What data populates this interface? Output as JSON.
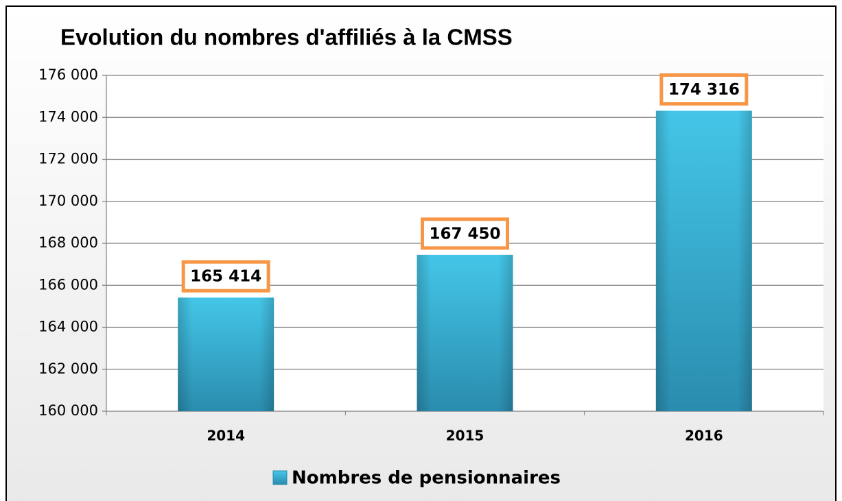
{
  "chart_data": {
    "type": "bar",
    "title": "Evolution du nombres d'affiliés à la CMSS",
    "categories": [
      "2014",
      "2015",
      "2016"
    ],
    "series": [
      {
        "name": "Nombres de pensionnaires",
        "color": "#3bbde0",
        "values": [
          165414,
          167450,
          174316
        ],
        "value_labels": [
          "165 414",
          "167 450",
          "174 316"
        ]
      }
    ],
    "ylim": [
      160000,
      176000
    ],
    "yticks": [
      {
        "value": 160000,
        "label": "160 000"
      },
      {
        "value": 162000,
        "label": "162 000"
      },
      {
        "value": 164000,
        "label": "164 000"
      },
      {
        "value": 166000,
        "label": "166 000"
      },
      {
        "value": 168000,
        "label": "168 000"
      },
      {
        "value": 170000,
        "label": "170 000"
      },
      {
        "value": 172000,
        "label": "172 000"
      },
      {
        "value": 174000,
        "label": "174 000"
      },
      {
        "value": 176000,
        "label": "176 000"
      }
    ],
    "grid": true,
    "legend": "bottom"
  }
}
